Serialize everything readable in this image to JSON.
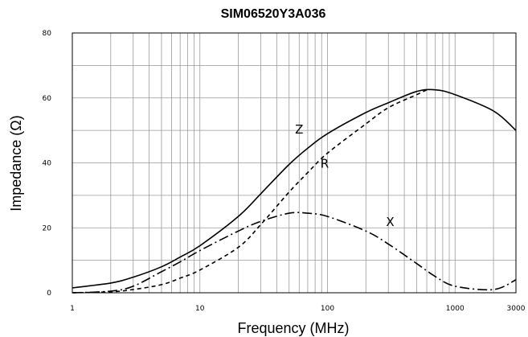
{
  "chart_data": {
    "type": "line",
    "title": "SIM06520Y3A036",
    "xlabel": "Frequency (MHz)",
    "ylabel": "Impedance (Ω)",
    "x_scale": "log",
    "xlim": [
      1,
      3000
    ],
    "ylim": [
      0,
      80
    ],
    "grid": true,
    "x_ticks": [
      1,
      10,
      100,
      1000,
      3000
    ],
    "x_tick_labels": [
      "1",
      "10",
      "100",
      "1000",
      "3000"
    ],
    "y_ticks": [
      0,
      20,
      40,
      60,
      80
    ],
    "y_tick_labels": [
      "0",
      "20",
      "40",
      "60",
      "80"
    ],
    "series": [
      {
        "name": "Z",
        "style": "solid",
        "x": [
          1,
          2,
          3,
          5,
          7,
          10,
          20,
          30,
          50,
          70,
          100,
          200,
          300,
          500,
          700,
          1000,
          2000,
          3000
        ],
        "y": [
          1.5,
          3,
          4.8,
          8,
          11,
          14.5,
          23.5,
          30.5,
          39.5,
          44.5,
          49,
          55.5,
          58.5,
          62,
          62.5,
          61,
          56,
          50
        ]
      },
      {
        "name": "R",
        "style": "dashed",
        "x": [
          1,
          2,
          3,
          5,
          7,
          10,
          20,
          30,
          50,
          70,
          100,
          200,
          300,
          500,
          600
        ],
        "y": [
          0,
          0.3,
          1,
          2.5,
          4.5,
          7,
          14,
          21,
          31,
          37,
          43,
          52,
          57,
          61,
          62.5
        ]
      },
      {
        "name": "X",
        "style": "dashdot",
        "x": [
          1,
          2,
          3,
          5,
          7,
          10,
          20,
          30,
          50,
          70,
          100,
          200,
          300,
          500,
          700,
          1000,
          2000,
          3000
        ],
        "y": [
          0,
          0.5,
          2,
          6.5,
          9.5,
          13,
          19,
          22,
          24.5,
          24.5,
          23.5,
          19,
          15,
          9,
          5,
          2,
          1,
          4
        ]
      }
    ],
    "annotations": [
      {
        "text": "Z",
        "x": 60,
        "y": 49
      },
      {
        "text": "R",
        "x": 95,
        "y": 38.5
      },
      {
        "text": "X",
        "x": 310,
        "y": 20.5
      }
    ]
  }
}
